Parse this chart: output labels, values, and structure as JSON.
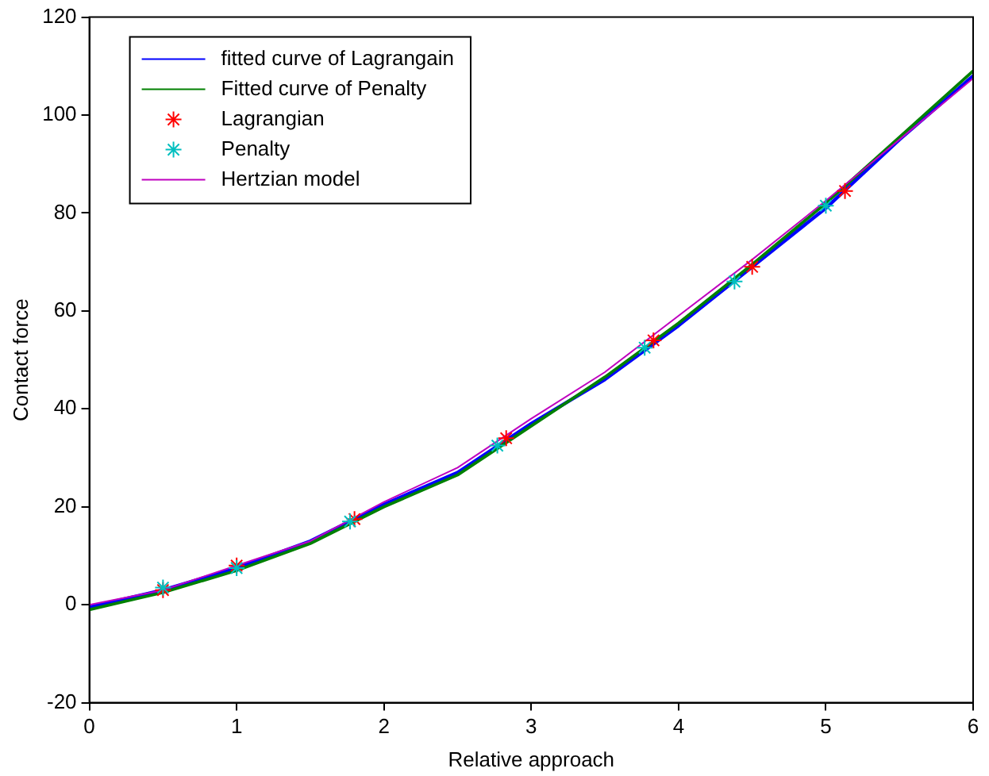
{
  "chart_data": {
    "type": "line",
    "xlabel": "Relative approach",
    "ylabel": "Contact force",
    "xlim": [
      0,
      6
    ],
    "xticks": [
      0,
      1,
      2,
      3,
      4,
      5,
      6
    ],
    "ylim": [
      -20,
      120
    ],
    "yticks": [
      -20,
      0,
      20,
      40,
      60,
      80,
      100,
      120
    ],
    "grid": false,
    "legend": "top left",
    "series": [
      {
        "name": "fitted curve of Lagrangain",
        "type": "line",
        "marker": "none",
        "color": "#0000ff",
        "x": [
          0,
          0.5,
          1,
          1.5,
          2,
          2.5,
          3,
          3.5,
          4,
          4.5,
          5,
          5.5,
          6
        ],
        "values": [
          -0.5,
          3,
          7.5,
          13,
          20.5,
          27,
          37,
          46,
          57,
          69,
          81,
          95,
          108
        ]
      },
      {
        "name": "Fitted curve of Penalty",
        "type": "line",
        "marker": "none",
        "color": "#008000",
        "x": [
          0,
          0.5,
          1,
          1.5,
          2,
          2.5,
          3,
          3.5,
          4,
          4.5,
          5,
          5.5,
          6
        ],
        "values": [
          -1,
          2.5,
          7,
          12.5,
          20,
          26.5,
          36.5,
          46.5,
          57.5,
          69.5,
          82,
          95.5,
          109
        ]
      },
      {
        "name": "Lagrangian",
        "type": "scatter",
        "marker": "cross",
        "color": "#ff0000",
        "x": [
          0.5,
          1,
          1.8,
          2.83,
          3.83,
          4.5,
          5.13
        ],
        "values": [
          3,
          8,
          17.5,
          34,
          54,
          69,
          84.5
        ]
      },
      {
        "name": "Penalty",
        "type": "scatter",
        "marker": "cross",
        "color": "#00bfbf",
        "x": [
          0.5,
          1,
          1.77,
          2.77,
          3.77,
          4.38,
          5
        ],
        "values": [
          3.5,
          7.5,
          17,
          32.5,
          52.5,
          66,
          81.5
        ]
      },
      {
        "name": "Hertzian model",
        "type": "line",
        "marker": "none",
        "color": "#bf00bf",
        "x": [
          0,
          0.5,
          1,
          1.5,
          2,
          2.5,
          3,
          3.5,
          4,
          4.5,
          5,
          5.5,
          6
        ],
        "values": [
          0,
          3,
          8,
          13,
          21,
          28,
          38,
          47.5,
          59,
          70.5,
          82.5,
          95,
          107.5
        ]
      }
    ]
  }
}
